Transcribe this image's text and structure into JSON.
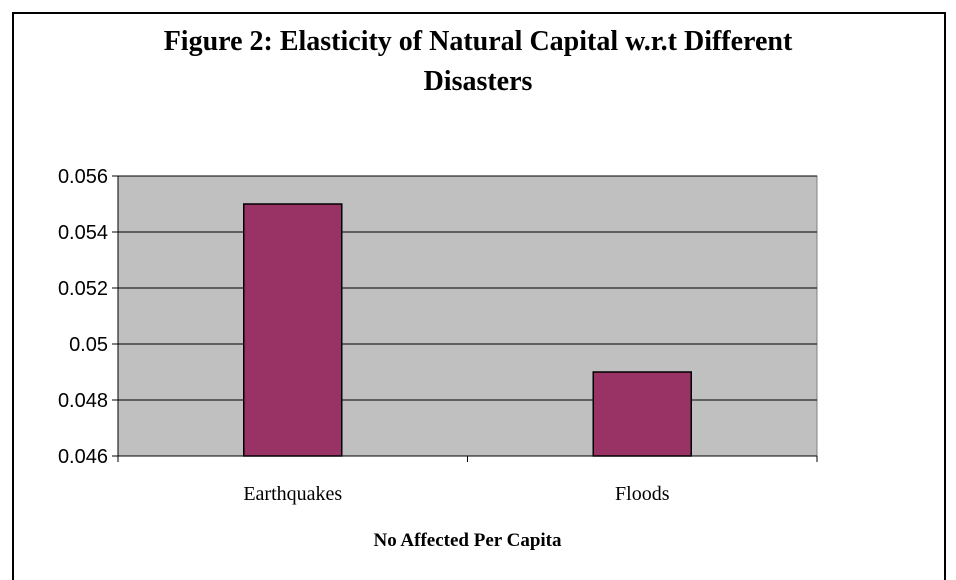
{
  "chart_data": {
    "type": "bar",
    "title_line1": "Figure 2: Elasticity of Natural Capital w.r.t Different",
    "title_line2": "Disasters",
    "xlabel": "No Affected Per Capita",
    "ylabel": "",
    "categories": [
      "Earthquakes",
      "Floods"
    ],
    "values": [
      0.055,
      0.049
    ],
    "ylim": [
      0.046,
      0.056
    ],
    "yticks": [
      "0.046",
      "0.048",
      "0.05",
      "0.052",
      "0.054",
      "0.056"
    ],
    "grid": true,
    "legend": "none"
  },
  "colors": {
    "plot_background": "#c0c0c0",
    "bar_fill": "#993366",
    "bar_stroke": "#000000",
    "gridline": "#000000"
  }
}
